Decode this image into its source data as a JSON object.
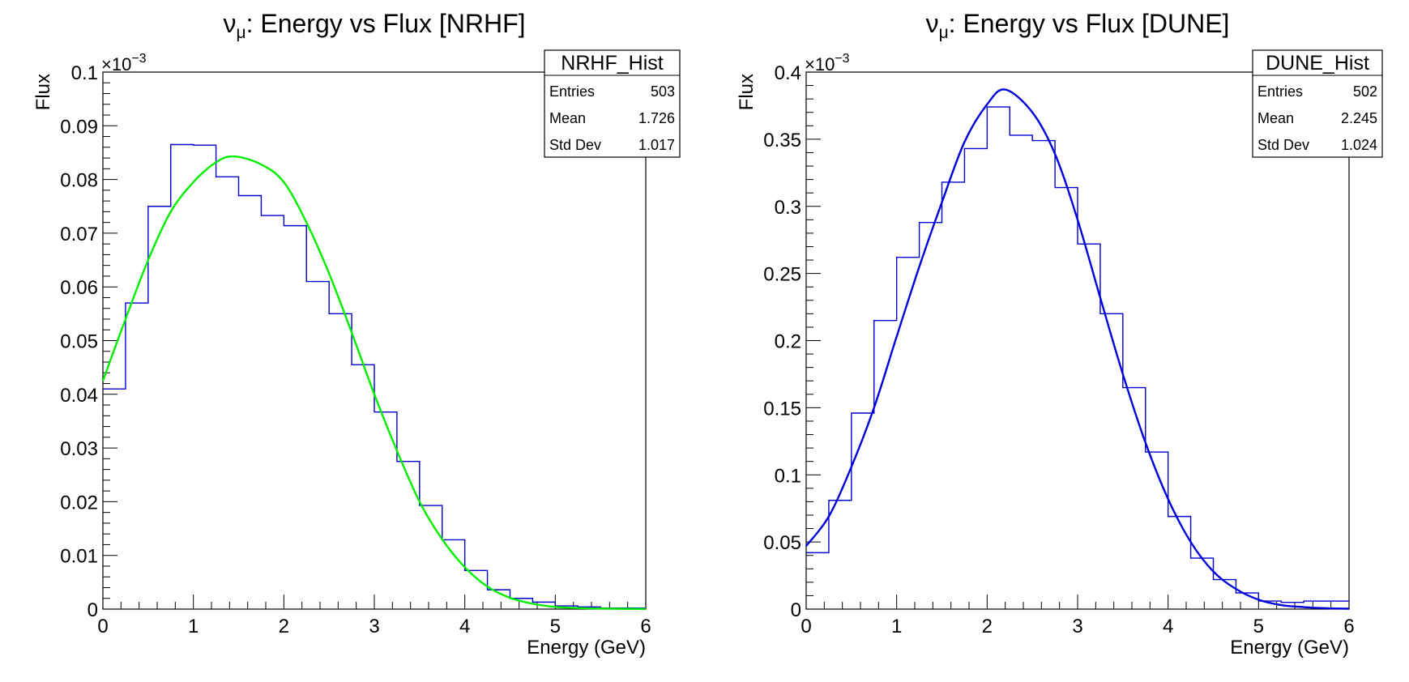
{
  "chart_data": [
    {
      "type": "histogram",
      "title": "νμ: Energy vs Flux [NRHF]",
      "title_parts": {
        "nu": "ν",
        "sub": "μ",
        "rest": ": Energy vs Flux [NRHF]"
      },
      "xlabel": "Energy (GeV)",
      "ylabel": "Flux",
      "xlim": [
        0,
        6
      ],
      "ylim": [
        0,
        0.1
      ],
      "y_multiplier_label": {
        "base": "×10",
        "exp": "−3"
      },
      "x_ticks": [
        "0",
        "1",
        "2",
        "3",
        "4",
        "5",
        "6"
      ],
      "y_ticks": [
        "0",
        "0.01",
        "0.02",
        "0.03",
        "0.04",
        "0.05",
        "0.06",
        "0.07",
        "0.08",
        "0.09",
        "0.1"
      ],
      "hist_color": "#0000cc",
      "fit_color": "#00ee00",
      "bin_edges": [
        0,
        0.25,
        0.5,
        0.75,
        1.0,
        1.25,
        1.5,
        1.75,
        2.0,
        2.25,
        2.5,
        2.75,
        3.0,
        3.25,
        3.5,
        3.75,
        4.0,
        4.25,
        4.5,
        4.75,
        5.0,
        5.25,
        5.5,
        5.75,
        6.0
      ],
      "values": [
        0.041,
        0.057,
        0.075,
        0.0865,
        0.0864,
        0.0805,
        0.077,
        0.0733,
        0.0714,
        0.061,
        0.055,
        0.0455,
        0.0367,
        0.0275,
        0.0193,
        0.0129,
        0.0072,
        0.0036,
        0.002,
        0.0013,
        0.0006,
        0.0004,
        0.0002,
        0.0002
      ],
      "fit_x": [
        0,
        0.25,
        0.5,
        0.75,
        1.0,
        1.25,
        1.45,
        1.75,
        2.0,
        2.25,
        2.5,
        2.75,
        3.0,
        3.25,
        3.5,
        3.75,
        4.0,
        4.25,
        4.5,
        4.75,
        5.0,
        5.25,
        5.5,
        5.75,
        6.0
      ],
      "fit_y": [
        0.0425,
        0.054,
        0.065,
        0.074,
        0.0795,
        0.0832,
        0.0843,
        0.0828,
        0.0795,
        0.072,
        0.0625,
        0.0515,
        0.04,
        0.0295,
        0.02,
        0.013,
        0.0078,
        0.0042,
        0.0021,
        0.001,
        0.0004,
        0.0002,
        0.0001,
        5e-05,
        3e-05
      ],
      "stats_box": {
        "name": "NRHF_Hist",
        "rows": [
          {
            "label": "Entries",
            "value": "503"
          },
          {
            "label": "Mean",
            "value": "1.726"
          },
          {
            "label": "Std Dev",
            "value": "1.017"
          }
        ]
      }
    },
    {
      "type": "histogram",
      "title": "νμ: Energy vs Flux [DUNE]",
      "title_parts": {
        "nu": "ν",
        "sub": "μ",
        "rest": ": Energy vs Flux [DUNE]"
      },
      "xlabel": "Energy (GeV)",
      "ylabel": "Flux",
      "xlim": [
        0,
        6
      ],
      "ylim": [
        0,
        0.4
      ],
      "y_multiplier_label": {
        "base": "×10",
        "exp": "−3"
      },
      "x_ticks": [
        "0",
        "1",
        "2",
        "3",
        "4",
        "5",
        "6"
      ],
      "y_ticks": [
        "0",
        "0.05",
        "0.1",
        "0.15",
        "0.2",
        "0.25",
        "0.3",
        "0.35",
        "0.4"
      ],
      "hist_color": "#0000cc",
      "fit_color": "#0000dd",
      "bin_edges": [
        0,
        0.25,
        0.5,
        0.75,
        1.0,
        1.25,
        1.5,
        1.75,
        2.0,
        2.25,
        2.5,
        2.75,
        3.0,
        3.25,
        3.5,
        3.75,
        4.0,
        4.25,
        4.5,
        4.75,
        5.0,
        5.25,
        5.5,
        5.75,
        6.0
      ],
      "values": [
        0.042,
        0.081,
        0.146,
        0.215,
        0.262,
        0.288,
        0.318,
        0.343,
        0.374,
        0.353,
        0.349,
        0.314,
        0.272,
        0.22,
        0.165,
        0.117,
        0.069,
        0.038,
        0.022,
        0.012,
        0.006,
        0.005,
        0.006,
        0.006
      ],
      "fit_x": [
        0,
        0.25,
        0.5,
        0.75,
        1.0,
        1.25,
        1.5,
        1.75,
        2.0,
        2.2,
        2.5,
        2.75,
        3.0,
        3.25,
        3.5,
        3.75,
        4.0,
        4.25,
        4.5,
        4.75,
        5.0,
        5.25,
        5.5,
        5.75,
        6.0
      ],
      "fit_y": [
        0.047,
        0.069,
        0.106,
        0.15,
        0.203,
        0.255,
        0.303,
        0.348,
        0.376,
        0.387,
        0.37,
        0.339,
        0.29,
        0.232,
        0.175,
        0.124,
        0.082,
        0.05,
        0.028,
        0.015,
        0.007,
        0.003,
        0.0015,
        0.0006,
        0.0003
      ],
      "stats_box": {
        "name": "DUNE_Hist",
        "rows": [
          {
            "label": "Entries",
            "value": "502"
          },
          {
            "label": "Mean",
            "value": "2.245"
          },
          {
            "label": "Std Dev",
            "value": "1.024"
          }
        ]
      }
    }
  ]
}
